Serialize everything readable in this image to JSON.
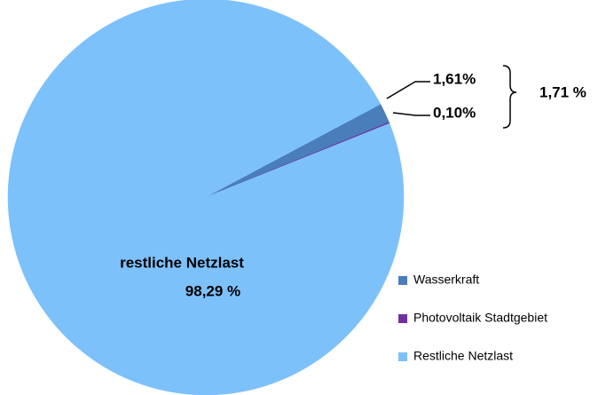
{
  "chart_data": {
    "type": "pie",
    "categories": [
      "Wasserkraft",
      "Photovoltaik Stadtgebiet",
      "Restliche Netzlast"
    ],
    "values": [
      1.61,
      0.1,
      98.29
    ],
    "value_labels": [
      "1,61%",
      "0,10%",
      "98,29 %"
    ],
    "colors": [
      "#4a7ebb",
      "#7030a0",
      "#7dc1fb"
    ],
    "annotations": [
      "1,71 %",
      "restliche Netzlast"
    ],
    "legend": "right"
  }
}
